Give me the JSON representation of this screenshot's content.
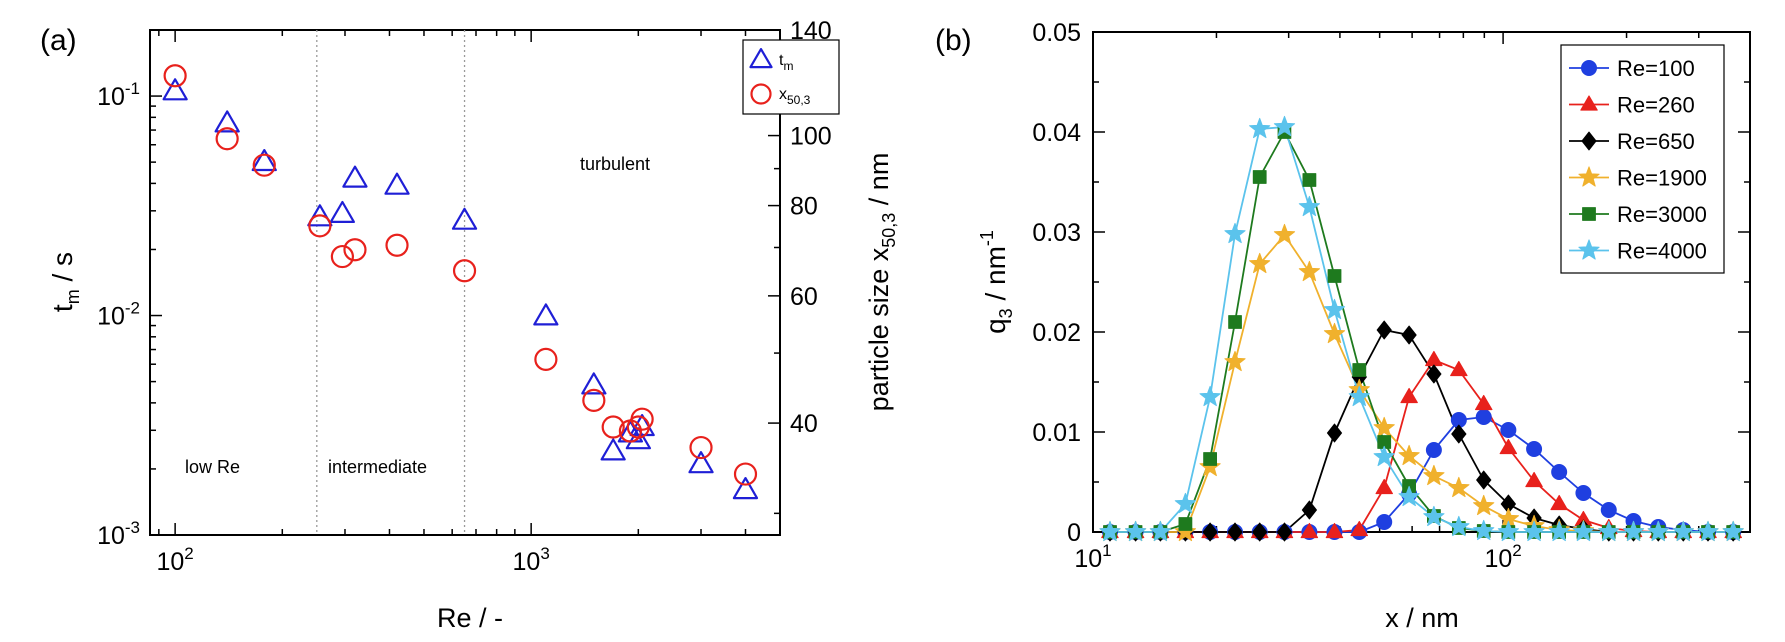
{
  "panels": {
    "a": {
      "label": "(a)",
      "chart_data": {
        "type": "scatter",
        "xlabel": "Re / -",
        "ylabel": "t",
        "ylabel_sub": "m",
        "ylabel_unit": " / s",
        "y2label": "particle size x",
        "y2label_sub": "50,3",
        "y2label_unit": " / nm",
        "x_scale": "log",
        "y_scale": "log",
        "xlim": [
          85,
          5000
        ],
        "ylim": [
          0.001,
          0.2
        ],
        "y2lim": [
          28,
          140
        ],
        "x_ticks": [
          {
            "value": 100,
            "base": "10",
            "exp": "2"
          },
          {
            "value": 1000,
            "base": "10",
            "exp": "3"
          }
        ],
        "y_ticks": [
          {
            "value": 0.001,
            "base": "10",
            "exp": "-3"
          },
          {
            "value": 0.01,
            "base": "10",
            "exp": "-2"
          },
          {
            "value": 0.1,
            "base": "10",
            "exp": "-1"
          }
        ],
        "y2_ticks": [
          "40",
          "60",
          "80",
          "100",
          "120",
          "140"
        ],
        "regime_lines": [
          250,
          650
        ],
        "regime_labels": [
          "low Re",
          "intermediate",
          "turbulent"
        ],
        "legend": {
          "position": "top-right"
        },
        "series": [
          {
            "name": "t",
            "name_sub": "m",
            "marker": "triangle",
            "color": "#1f1fd6",
            "axis": "left",
            "points": [
              [
                100,
                0.105
              ],
              [
                140,
                0.075
              ],
              [
                178,
                0.05
              ],
              [
                255,
                0.028
              ],
              [
                295,
                0.029
              ],
              [
                320,
                0.042
              ],
              [
                420,
                0.039
              ],
              [
                650,
                0.027
              ],
              [
                1100,
                0.0099
              ],
              [
                1500,
                0.0048
              ],
              [
                1700,
                0.0024
              ],
              [
                1900,
                0.0029
              ],
              [
                2000,
                0.0027
              ],
              [
                2050,
                0.0031
              ],
              [
                3000,
                0.0021
              ],
              [
                4000,
                0.0016
              ]
            ]
          },
          {
            "name": "x",
            "name_sub": "50,3",
            "marker": "circle",
            "color": "#e8211c",
            "axis": "right",
            "points": [
              [
                100,
                121
              ],
              [
                140,
                99
              ],
              [
                178,
                91
              ],
              [
                255,
                75
              ],
              [
                295,
                68
              ],
              [
                320,
                69.5
              ],
              [
                420,
                70.5
              ],
              [
                650,
                65
              ],
              [
                1100,
                49
              ],
              [
                1500,
                43
              ],
              [
                1700,
                39.5
              ],
              [
                1900,
                39
              ],
              [
                2000,
                39.5
              ],
              [
                2050,
                40.5
              ],
              [
                3000,
                37
              ],
              [
                4000,
                34
              ]
            ]
          }
        ]
      }
    },
    "b": {
      "label": "(b)",
      "chart_data": {
        "type": "line",
        "xlabel": "x / nm",
        "ylabel": "q",
        "ylabel_sub": "3",
        "ylabel_unit": " / nm",
        "ylabel_sup": "-1",
        "x_scale": "log",
        "xlim": [
          10,
          400
        ],
        "ylim": [
          0,
          0.05
        ],
        "x_ticks": [
          {
            "value": 10,
            "base": "10",
            "exp": "1"
          },
          {
            "value": 100,
            "base": "10",
            "exp": "2"
          }
        ],
        "y_ticks": [
          "0",
          "0.01",
          "0.02",
          "0.03",
          "0.04",
          "0.05"
        ],
        "legend": {
          "position": "top-right"
        },
        "x": [
          11,
          12.7,
          14.6,
          16.8,
          19.3,
          22.2,
          25.5,
          29.3,
          33.7,
          38.8,
          44.6,
          51.3,
          59,
          67.8,
          78,
          89.7,
          103,
          119,
          137,
          157,
          181,
          208,
          239,
          275,
          316,
          364
        ],
        "series": [
          {
            "name": "Re=100",
            "marker": "circle",
            "color": "#1f3fe0",
            "values": [
              0,
              0,
              0,
              0,
              0,
              0,
              0,
              0,
              0,
              0,
              0,
              0.001,
              0.0038,
              0.0082,
              0.0112,
              0.0115,
              0.0102,
              0.0083,
              0.006,
              0.0039,
              0.0022,
              0.0011,
              0.0005,
              0.0002,
              0,
              0
            ]
          },
          {
            "name": "Re=260",
            "marker": "triangle",
            "color": "#e8211c",
            "values": [
              0,
              0,
              0,
              0,
              0,
              0,
              0,
              0,
              0,
              0,
              0.0002,
              0.0044,
              0.0135,
              0.0172,
              0.0162,
              0.0128,
              0.0084,
              0.0051,
              0.0028,
              0.0012,
              0.0004,
              0.0001,
              0,
              0,
              0,
              0
            ]
          },
          {
            "name": "Re=650",
            "marker": "diamond",
            "color": "#000000",
            "values": [
              0,
              0,
              0,
              0,
              0,
              0,
              0,
              0,
              0.0022,
              0.0099,
              0.0155,
              0.0202,
              0.0197,
              0.0158,
              0.0098,
              0.0052,
              0.0028,
              0.0014,
              0.0007,
              0.0003,
              0,
              0,
              0,
              0,
              0,
              0
            ]
          },
          {
            "name": "Re=1900",
            "marker": "star",
            "color": "#f0b12d",
            "values": [
              0,
              0,
              0,
              0,
              0.0065,
              0.017,
              0.0268,
              0.0297,
              0.026,
              0.0198,
              0.0142,
              0.0104,
              0.0076,
              0.0056,
              0.0044,
              0.0026,
              0.0013,
              0.0006,
              0.0002,
              0.0001,
              0,
              0,
              0,
              0,
              0,
              0
            ]
          },
          {
            "name": "Re=3000",
            "marker": "square",
            "color": "#1e7a1e",
            "values": [
              0,
              0,
              0,
              0.0008,
              0.0073,
              0.021,
              0.0355,
              0.04,
              0.0352,
              0.0256,
              0.0162,
              0.009,
              0.0046,
              0.0016,
              0.0004,
              0.0001,
              0,
              0,
              0,
              0,
              0,
              0,
              0,
              0,
              0,
              0
            ]
          },
          {
            "name": "Re=4000",
            "marker": "star",
            "color": "#5bc3ec",
            "values": [
              0,
              0,
              0,
              0.0028,
              0.0135,
              0.0298,
              0.0403,
              0.0405,
              0.0325,
              0.0222,
              0.0135,
              0.0075,
              0.0035,
              0.0015,
              0.0005,
              0.0001,
              0,
              0,
              0,
              0,
              0,
              0,
              0,
              0,
              0,
              0
            ]
          }
        ]
      }
    }
  }
}
